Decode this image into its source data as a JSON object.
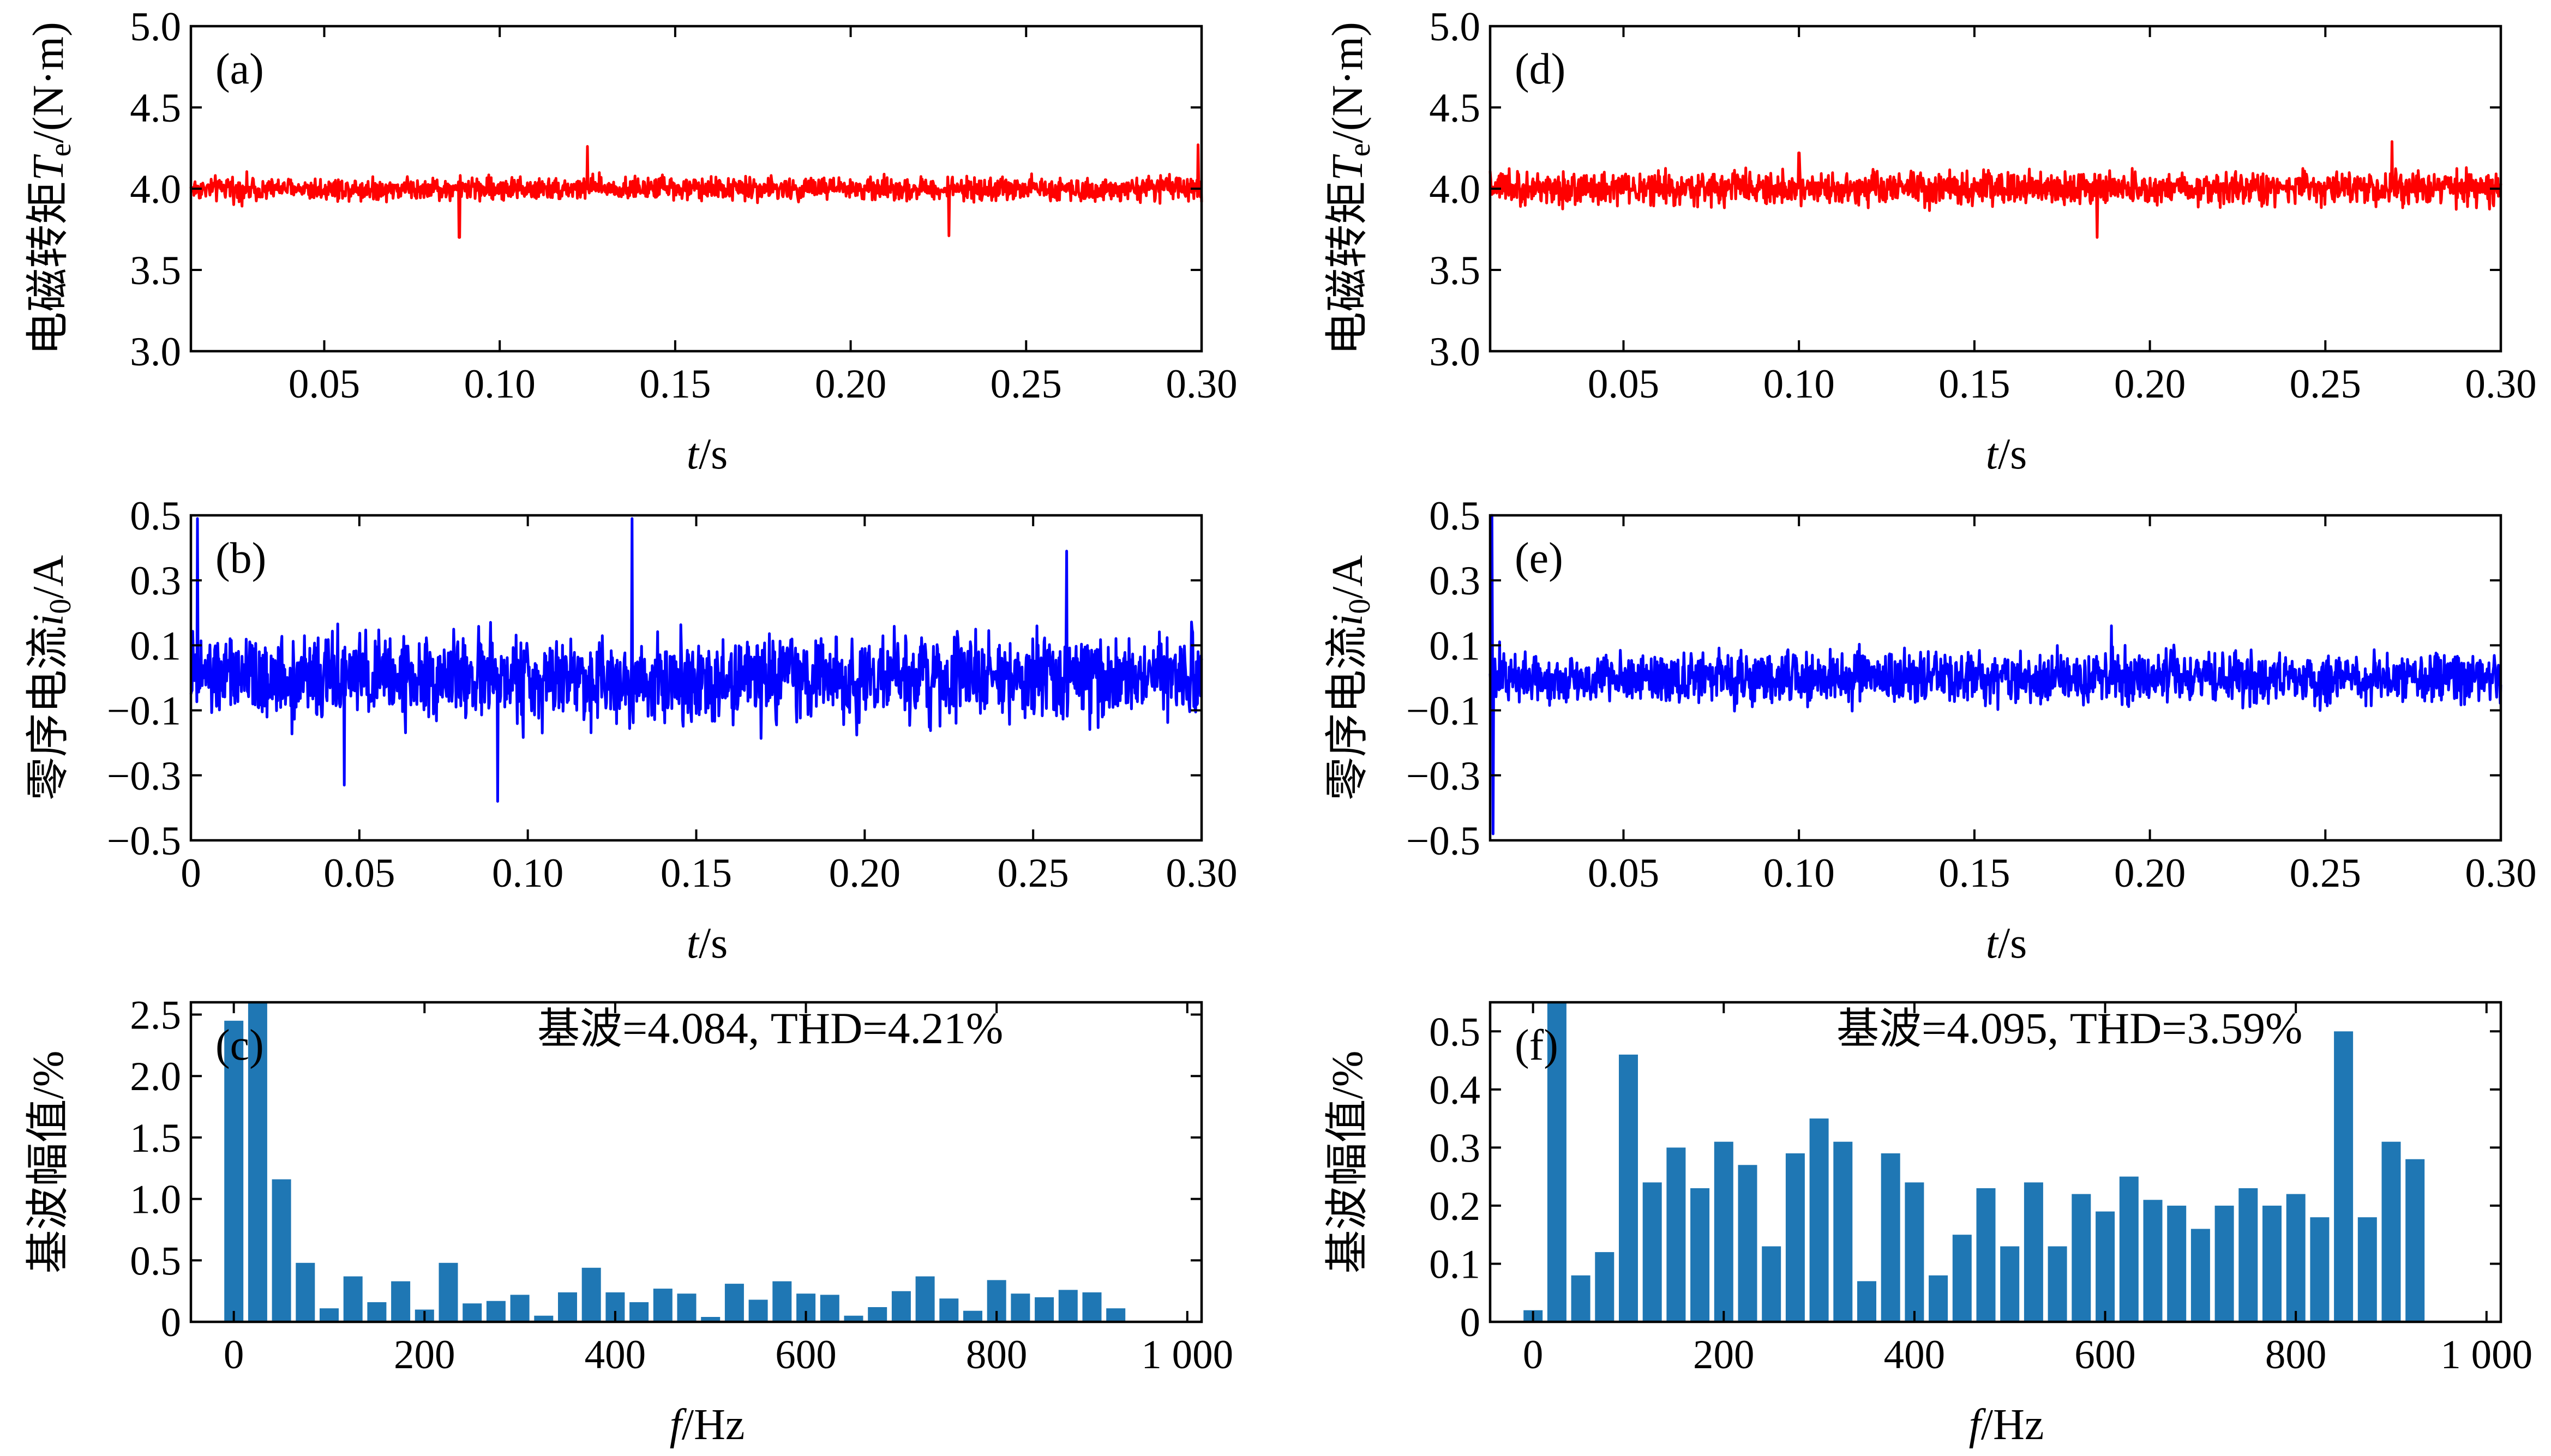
{
  "chart_data": [
    {
      "id": "a",
      "type": "line",
      "panel_label": "(a)",
      "title": "",
      "ylabel": {
        "prefix": "电磁转矩",
        "symbol": "T",
        "subscript": "e",
        "unit": "/(N·m)"
      },
      "xlabel": {
        "symbol": "t",
        "unit": "/s"
      },
      "xlim": [
        0.012,
        0.3
      ],
      "ylim": [
        3.0,
        5.0
      ],
      "xticks": [
        0.05,
        0.1,
        0.15,
        0.2,
        0.25,
        0.3
      ],
      "xtick_labels": [
        "0.05",
        "0.10",
        "0.15",
        "0.20",
        "0.25",
        "0.30"
      ],
      "yticks": [
        3.0,
        3.5,
        4.0,
        4.5,
        5.0
      ],
      "ytick_labels": [
        "3.0",
        "3.5",
        "4.0",
        "4.5",
        "5.0"
      ],
      "series": [
        {
          "name": "Te",
          "color": "#ff0000",
          "mean": 4.0,
          "ripple_amplitude": 0.12,
          "peaks": [
            {
              "x": 0.125,
              "y": 4.26
            },
            {
              "x": 0.299,
              "y": 4.27
            },
            {
              "x": 0.0885,
              "y": 3.7
            },
            {
              "x": 0.228,
              "y": 3.71
            }
          ]
        }
      ]
    },
    {
      "id": "b",
      "type": "line",
      "panel_label": "(b)",
      "title": "",
      "ylabel": {
        "prefix": "零序电流",
        "symbol": "i",
        "subscript": "0",
        "unit": "/A"
      },
      "xlabel": {
        "symbol": "t",
        "unit": "/s"
      },
      "xlim": [
        0.0,
        0.3
      ],
      "ylim": [
        -0.5,
        0.5
      ],
      "xticks": [
        0,
        0.05,
        0.1,
        0.15,
        0.2,
        0.25,
        0.3
      ],
      "xtick_labels": [
        "0",
        "0.05",
        "0.10",
        "0.15",
        "0.20",
        "0.25",
        "0.30"
      ],
      "yticks": [
        -0.5,
        -0.3,
        -0.1,
        0.1,
        0.3,
        0.5
      ],
      "ytick_labels": [
        "−0.5",
        "−0.3",
        "−0.1",
        "0.1",
        "0.3",
        "0.5"
      ],
      "series": [
        {
          "name": "i0",
          "color": "#0000ff",
          "mean": 0.0,
          "ripple_amplitude": 0.22,
          "peaks": [
            {
              "x": 0.002,
              "y": 0.49
            },
            {
              "x": 0.131,
              "y": 0.49
            },
            {
              "x": 0.26,
              "y": 0.39
            },
            {
              "x": 0.091,
              "y": -0.38
            },
            {
              "x": 0.0455,
              "y": -0.33
            }
          ]
        }
      ]
    },
    {
      "id": "c",
      "type": "bar",
      "panel_label": "(c)",
      "annotation": {
        "label": "基波",
        "text": "=4.084, THD=4.21%"
      },
      "ylabel": {
        "prefix": "基波幅值",
        "symbol": "",
        "subscript": "",
        "unit": "/%"
      },
      "xlabel": {
        "symbol": "f",
        "unit": "/Hz"
      },
      "xlim": [
        -45,
        1015
      ],
      "ylim": [
        0,
        2.6
      ],
      "xticks": [
        0,
        200,
        400,
        600,
        800,
        1000
      ],
      "xtick_labels": [
        "0",
        "200",
        "400",
        "600",
        "800",
        "1 000"
      ],
      "yticks": [
        0,
        0.5,
        1.0,
        1.5,
        2.0,
        2.5
      ],
      "ytick_labels": [
        "0",
        "0.5",
        "1.0",
        "1.5",
        "2.0",
        "2.5"
      ],
      "bar_color": "#1f77b4",
      "bar_spacing_hz": 25,
      "values": [
        2.45,
        2.62,
        1.16,
        0.48,
        0.11,
        0.37,
        0.16,
        0.33,
        0.1,
        0.48,
        0.15,
        0.17,
        0.22,
        0.05,
        0.24,
        0.44,
        0.24,
        0.16,
        0.27,
        0.23,
        0.04,
        0.31,
        0.18,
        0.33,
        0.23,
        0.22,
        0.05,
        0.12,
        0.25,
        0.37,
        0.19,
        0.09,
        0.34,
        0.23,
        0.2,
        0.26,
        0.24,
        0.11
      ]
    },
    {
      "id": "d",
      "type": "line",
      "panel_label": "(d)",
      "title": "",
      "ylabel": {
        "prefix": "电磁转矩",
        "symbol": "T",
        "subscript": "e",
        "unit": "/(N·m)"
      },
      "xlabel": {
        "symbol": "t",
        "unit": "/s"
      },
      "xlim": [
        0.012,
        0.3
      ],
      "ylim": [
        3.0,
        5.0
      ],
      "xticks": [
        0.05,
        0.1,
        0.15,
        0.2,
        0.25,
        0.3
      ],
      "xtick_labels": [
        "0.05",
        "0.10",
        "0.15",
        "0.20",
        "0.25",
        "0.30"
      ],
      "yticks": [
        3.0,
        3.5,
        4.0,
        4.5,
        5.0
      ],
      "ytick_labels": [
        "3.0",
        "3.5",
        "4.0",
        "4.5",
        "5.0"
      ],
      "series": [
        {
          "name": "Te",
          "color": "#ff0000",
          "mean": 4.0,
          "ripple_amplitude": 0.17,
          "peaks": [
            {
              "x": 0.269,
              "y": 4.29
            },
            {
              "x": 0.185,
              "y": 3.7
            },
            {
              "x": 0.1,
              "y": 4.22
            }
          ]
        }
      ]
    },
    {
      "id": "e",
      "type": "line",
      "panel_label": "(e)",
      "title": "",
      "ylabel": {
        "prefix": "零序电流",
        "symbol": "i",
        "subscript": "0",
        "unit": "/A"
      },
      "xlabel": {
        "symbol": "t",
        "unit": "/s"
      },
      "xlim": [
        0.012,
        0.3
      ],
      "ylim": [
        -0.5,
        0.5
      ],
      "xticks": [
        0.05,
        0.1,
        0.15,
        0.2,
        0.25,
        0.3
      ],
      "xtick_labels": [
        "0.05",
        "0.10",
        "0.15",
        "0.20",
        "0.25",
        "0.30"
      ],
      "yticks": [
        -0.5,
        -0.3,
        -0.1,
        0.1,
        0.3,
        0.5
      ],
      "ytick_labels": [
        "−0.5",
        "−0.3",
        "−0.1",
        "0.1",
        "0.3",
        "0.5"
      ],
      "series": [
        {
          "name": "i0",
          "color": "#0000ff",
          "mean": 0.0,
          "ripple_amplitude": 0.13,
          "peaks": [
            {
              "x": 0.0125,
              "y": 0.5
            },
            {
              "x": 0.0128,
              "y": -0.48
            },
            {
              "x": 0.189,
              "y": 0.16
            }
          ]
        }
      ]
    },
    {
      "id": "f",
      "type": "bar",
      "panel_label": "(f)",
      "annotation": {
        "label": "基波",
        "text": "=4.095, THD=3.59%"
      },
      "ylabel": {
        "prefix": "基波幅值",
        "symbol": "",
        "subscript": "",
        "unit": "/%"
      },
      "xlabel": {
        "symbol": "f",
        "unit": "/Hz"
      },
      "xlim": [
        -45,
        1015
      ],
      "ylim": [
        0,
        0.55
      ],
      "xticks": [
        0,
        200,
        400,
        600,
        800,
        1000
      ],
      "xtick_labels": [
        "0",
        "200",
        "400",
        "600",
        "800",
        "1 000"
      ],
      "yticks": [
        0,
        0.1,
        0.2,
        0.3,
        0.4,
        0.5
      ],
      "ytick_labels": [
        "0",
        "0.1",
        "0.2",
        "0.3",
        "0.4",
        "0.5"
      ],
      "bar_color": "#1f77b4",
      "bar_spacing_hz": 25,
      "values": [
        0.02,
        0.55,
        0.08,
        0.12,
        0.46,
        0.24,
        0.3,
        0.23,
        0.31,
        0.27,
        0.13,
        0.29,
        0.35,
        0.31,
        0.07,
        0.29,
        0.24,
        0.08,
        0.15,
        0.23,
        0.13,
        0.24,
        0.13,
        0.22,
        0.19,
        0.25,
        0.21,
        0.2,
        0.16,
        0.2,
        0.23,
        0.2,
        0.22,
        0.18,
        0.5,
        0.18,
        0.31,
        0.28
      ]
    }
  ]
}
